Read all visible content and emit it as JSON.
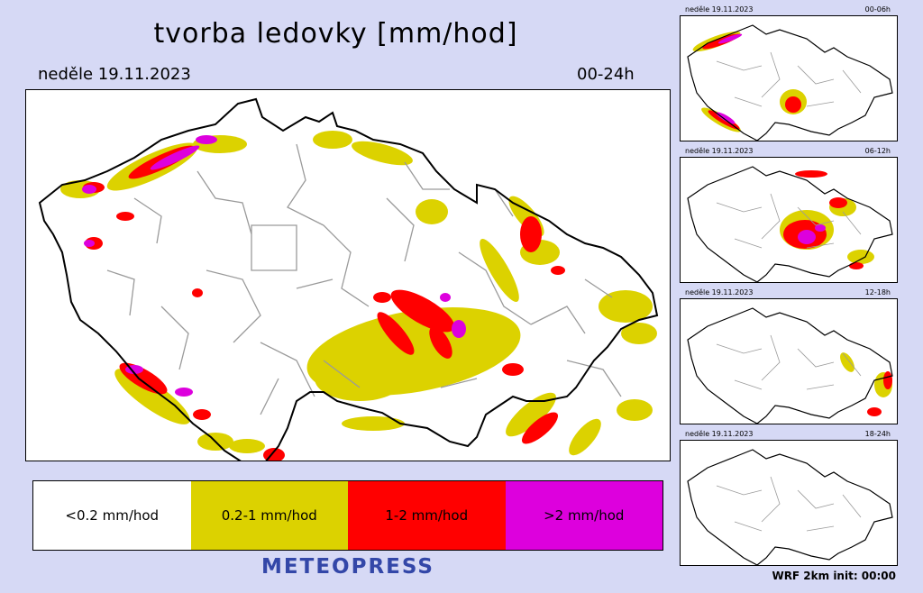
{
  "title": "tvorba ledovky [mm/hod]",
  "date": "neděle 19.11.2023",
  "range": "00-24h",
  "legend": [
    {
      "label": "<0.2 mm/hod",
      "color": "#ffffff"
    },
    {
      "label": "0.2-1 mm/hod",
      "color": "#dcd200"
    },
    {
      "label": "1-2 mm/hod",
      "color": "#ff0000"
    },
    {
      "label": ">2 mm/hod",
      "color": "#dd00dd"
    }
  ],
  "brand": "METEOPRESS",
  "thumbnails": [
    {
      "date": "neděle 19.11.2023",
      "range": "00-06h"
    },
    {
      "date": "neděle 19.11.2023",
      "range": "06-12h"
    },
    {
      "date": "neděle 19.11.2023",
      "range": "12-18h"
    },
    {
      "date": "neděle 19.11.2023",
      "range": "18-24h"
    }
  ],
  "footer": "WRF  2km  init:  00:00"
}
